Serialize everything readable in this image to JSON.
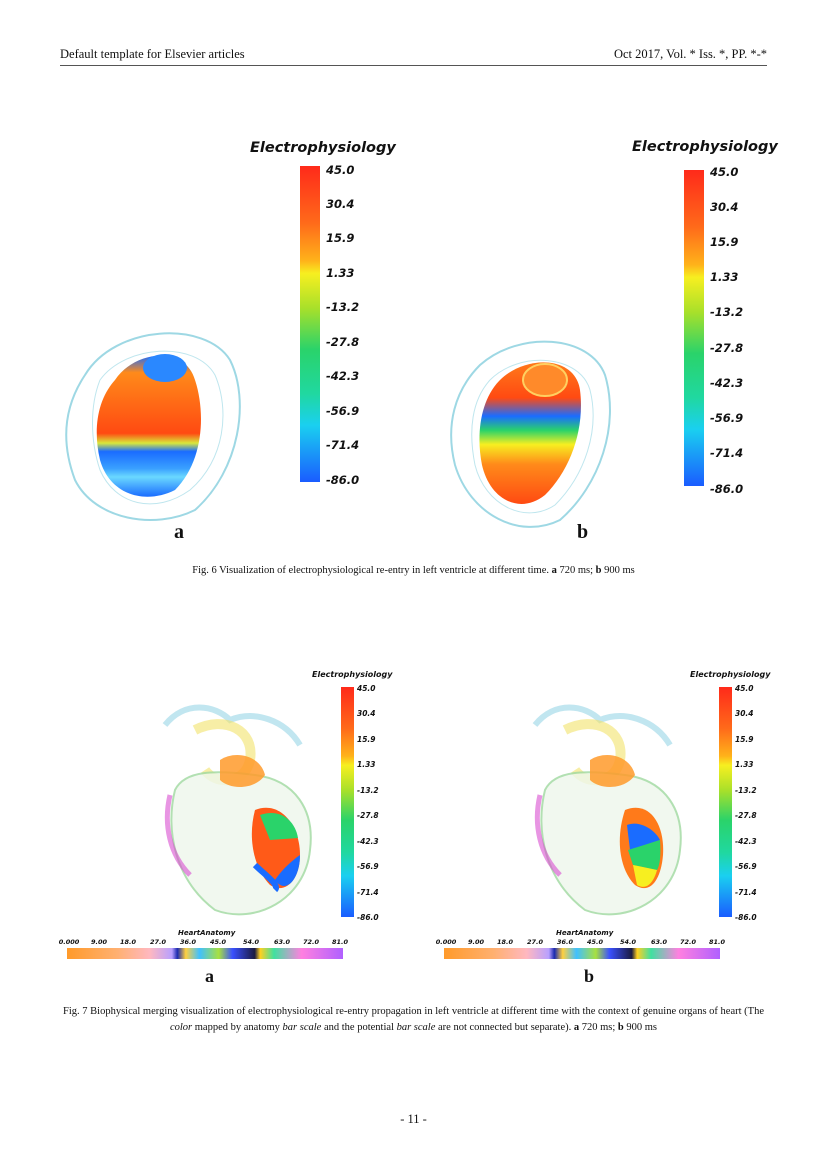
{
  "header": {
    "left": "Default template for Elsevier articles",
    "right": "Oct 2017, Vol. * Iss. *, PP. *-*"
  },
  "colors": {
    "scale_top": "#ff2a1a",
    "scale_mid": "#f7ef20",
    "scale_low": "#2ad36a",
    "scale_bottom": "#1a5cff",
    "heart_outline": "#9ed8e4"
  },
  "fig6": {
    "panels": [
      {
        "letter": "a",
        "colorbar_title": "Electrophysiology",
        "ticks": [
          "45.0",
          "30.4",
          "15.9",
          "1.33",
          "-13.2",
          "-27.8",
          "-42.3",
          "-56.9",
          "-71.4",
          "-86.0"
        ]
      },
      {
        "letter": "b",
        "colorbar_title": "Electrophysiology",
        "ticks": [
          "45.0",
          "30.4",
          "15.9",
          "1.33",
          "-13.2",
          "-27.8",
          "-42.3",
          "-56.9",
          "-71.4",
          "-86.0"
        ]
      }
    ],
    "caption_prefix": "Fig. 6 Visualization of electrophysiological re-entry in left ventricle at different time.",
    "caption_a_label": "a",
    "caption_a_text": "720 ms;",
    "caption_b_label": "b",
    "caption_b_text": "900 ms"
  },
  "fig7": {
    "panels": [
      {
        "letter": "a",
        "colorbar_title": "Electrophysiology",
        "ticks": [
          "45.0",
          "30.4",
          "15.9",
          "1.33",
          "-13.2",
          "-27.8",
          "-42.3",
          "-56.9",
          "-71.4",
          "-86.0"
        ],
        "anatomy_title": "HeartAnatomy",
        "anatomy_ticks": [
          "0.000",
          "9.00",
          "18.0",
          "27.0",
          "36.0",
          "45.0",
          "54.0",
          "63.0",
          "72.0",
          "81.0"
        ]
      },
      {
        "letter": "b",
        "colorbar_title": "Electrophysiology",
        "ticks": [
          "45.0",
          "30.4",
          "15.9",
          "1.33",
          "-13.2",
          "-27.8",
          "-42.3",
          "-56.9",
          "-71.4",
          "-86.0"
        ],
        "anatomy_title": "HeartAnatomy",
        "anatomy_ticks": [
          "0.000",
          "9.00",
          "18.0",
          "27.0",
          "36.0",
          "45.0",
          "54.0",
          "63.0",
          "72.0",
          "81.0"
        ]
      }
    ],
    "caption_part1": "Fig. 7 Biophysical merging visualization of electrophysiological re-entry propagation in left ventricle at different time with the context of genuine organs of heart (The",
    "caption_color": "color",
    "caption_part2": "mapped by anatomy",
    "caption_bar1": "bar scale",
    "caption_part3": "and the potential",
    "caption_bar2": "bar scale",
    "caption_part4": "are not connected but separate).",
    "caption_a_label": "a",
    "caption_a_text": "720 ms;",
    "caption_b_label": "b",
    "caption_b_text": "900 ms"
  },
  "page_number": "- 11 -"
}
